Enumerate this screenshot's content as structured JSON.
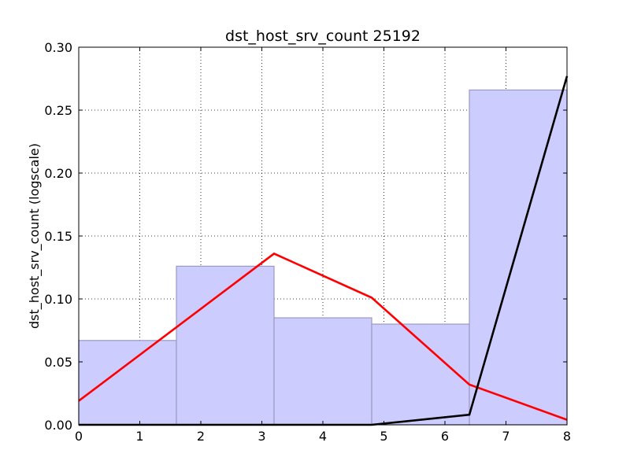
{
  "chart_data": {
    "type": "bar",
    "title": "dst_host_srv_count 25192",
    "xlabel": "",
    "ylabel": "dst_host_srv_count (logscale)",
    "xlim": [
      0,
      8
    ],
    "ylim": [
      0,
      0.3
    ],
    "grid": true,
    "x_ticks": [
      0,
      1,
      2,
      3,
      4,
      5,
      6,
      7,
      8
    ],
    "y_ticks": [
      0.0,
      0.05,
      0.1,
      0.15,
      0.2,
      0.25,
      0.3
    ],
    "x_tick_labels": [
      "0",
      "1",
      "2",
      "3",
      "4",
      "5",
      "6",
      "7",
      "8"
    ],
    "y_tick_labels": [
      "0.00",
      "0.05",
      "0.10",
      "0.15",
      "0.20",
      "0.25",
      "0.30"
    ],
    "bars": [
      {
        "x0": 0.0,
        "x1": 1.6,
        "value": 0.067
      },
      {
        "x0": 1.6,
        "x1": 3.2,
        "value": 0.126
      },
      {
        "x0": 3.2,
        "x1": 4.8,
        "value": 0.085
      },
      {
        "x0": 4.8,
        "x1": 6.4,
        "value": 0.08
      },
      {
        "x0": 6.4,
        "x1": 8.0,
        "value": 0.266
      }
    ],
    "series": [
      {
        "color": "#ff0000",
        "x": [
          0,
          3.2,
          4.8,
          6.4,
          8.0
        ],
        "values": [
          0.019,
          0.136,
          0.101,
          0.032,
          0.004
        ]
      },
      {
        "color": "#000000",
        "x": [
          0,
          4.8,
          6.4,
          8.0
        ],
        "values": [
          0.0,
          0.0,
          0.008,
          0.277
        ]
      }
    ],
    "colors": {
      "bar_fill": "#ccccff",
      "bar_stroke": "#9a9ac0"
    }
  }
}
